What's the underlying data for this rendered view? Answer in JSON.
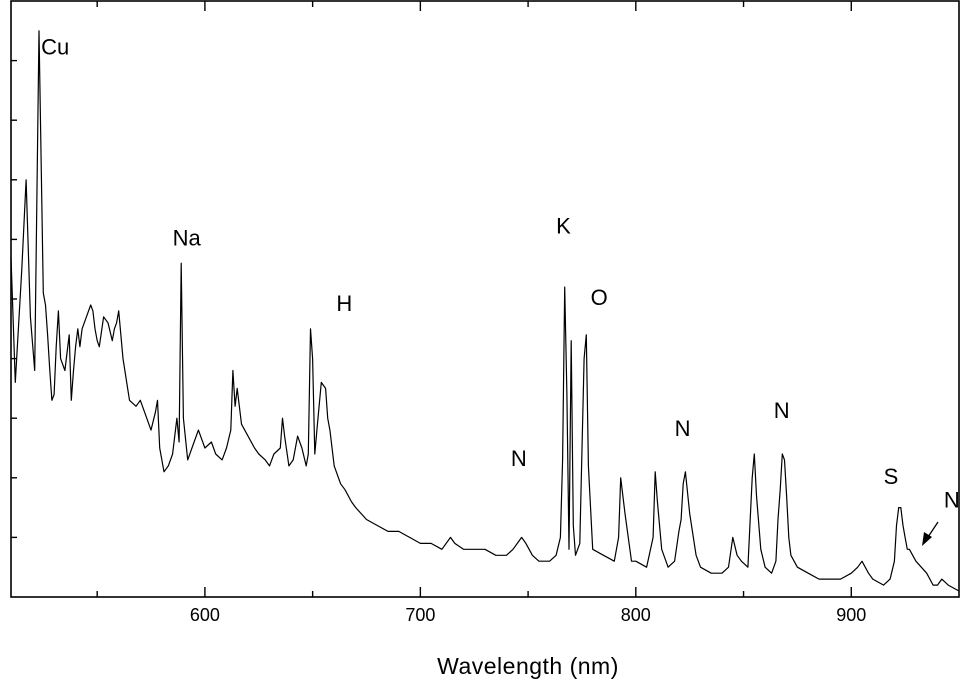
{
  "chart_data": {
    "type": "line",
    "title": "",
    "xlabel": "Wavelength (nm)",
    "ylabel": "",
    "xlim": [
      510,
      950
    ],
    "ylim": [
      0,
      100
    ],
    "x_ticks": [
      600,
      700,
      800,
      900
    ],
    "x_tick_labels": [
      "600",
      "700",
      "800",
      "900"
    ],
    "grid": false,
    "legend": "none",
    "line_color": "#000000",
    "series": [
      {
        "x": [
          510,
          512,
          515,
          517,
          519,
          521,
          523,
          525,
          526,
          527,
          528,
          529,
          530,
          531,
          532,
          533,
          535,
          537,
          538,
          539,
          540,
          541,
          542,
          543,
          545,
          547,
          548,
          549,
          550,
          551,
          553,
          555,
          557,
          558,
          559,
          560,
          562,
          565,
          568,
          570,
          572,
          575,
          577,
          578,
          579,
          581,
          583,
          585,
          587,
          588,
          589,
          590,
          592,
          595,
          597,
          600,
          603,
          605,
          608,
          610,
          612,
          613,
          614,
          615,
          617,
          620,
          623,
          625,
          628,
          630,
          632,
          635,
          636,
          637,
          639,
          641,
          643,
          645,
          647,
          648,
          649,
          650,
          651,
          652,
          654,
          656,
          657,
          658,
          660,
          663,
          665,
          668,
          670,
          675,
          680,
          685,
          690,
          695,
          700,
          705,
          710,
          714,
          716,
          720,
          725,
          730,
          735,
          740,
          743,
          745,
          747,
          749,
          752,
          755,
          760,
          763,
          765,
          766,
          767,
          768,
          769,
          770,
          771,
          772,
          774,
          776,
          777,
          778,
          780,
          785,
          790,
          792,
          793,
          795,
          798,
          800,
          805,
          808,
          809,
          810,
          812,
          815,
          818,
          820,
          821,
          822,
          823,
          825,
          828,
          830,
          835,
          840,
          843,
          845,
          847,
          849,
          852,
          854,
          855,
          856,
          858,
          860,
          863,
          865,
          866,
          867,
          868,
          869,
          870,
          871,
          872,
          875,
          880,
          885,
          890,
          895,
          900,
          903,
          905,
          908,
          910,
          915,
          918,
          920,
          921,
          922,
          923,
          924,
          925,
          926,
          927,
          930,
          935,
          938,
          940,
          942,
          945,
          950
        ],
        "y": [
          57,
          36,
          55,
          70,
          47,
          38,
          95,
          51,
          49,
          44,
          38,
          33,
          34,
          42,
          48,
          40,
          38,
          44,
          33,
          38,
          42,
          45,
          42,
          45,
          47,
          49,
          48,
          45,
          43,
          42,
          47,
          46,
          43,
          45,
          46,
          48,
          40,
          33,
          32,
          33,
          31,
          28,
          31,
          33,
          25,
          21,
          22,
          24,
          30,
          26,
          56,
          30,
          23,
          26,
          28,
          25,
          26,
          24,
          23,
          25,
          28,
          38,
          32,
          35,
          29,
          27,
          25,
          24,
          23,
          22,
          24,
          25,
          30,
          27,
          22,
          23,
          27,
          25,
          22,
          24,
          45,
          40,
          24,
          28,
          36,
          35,
          30,
          28,
          22,
          19,
          18,
          16,
          15,
          13,
          12,
          11,
          11,
          10,
          9,
          9,
          8,
          10,
          9,
          8,
          8,
          8,
          7,
          7,
          8,
          9,
          10,
          9,
          7,
          6,
          6,
          7,
          10,
          23,
          52,
          34,
          8,
          43,
          12,
          7,
          9,
          40,
          44,
          22,
          8,
          7,
          6,
          10,
          20,
          14,
          6,
          6,
          5,
          10,
          21,
          16,
          8,
          5,
          6,
          11,
          13,
          19,
          21,
          14,
          7,
          5,
          4,
          4,
          5,
          10,
          7,
          6,
          5,
          20,
          24,
          17,
          8,
          5,
          4,
          6,
          13,
          18,
          24,
          23,
          17,
          10,
          7,
          5,
          4,
          3,
          3,
          3,
          4,
          5,
          6,
          4,
          3,
          2,
          3,
          6,
          12,
          15,
          15,
          12,
          10,
          8,
          8,
          6,
          4,
          2,
          2,
          3,
          2,
          1
        ]
      }
    ],
    "annotations": [
      {
        "text": "Cu",
        "x": 524,
        "y": 91
      },
      {
        "text": "Na",
        "x": 585,
        "y": 59
      },
      {
        "text": "H",
        "x": 661,
        "y": 48
      },
      {
        "text": "K",
        "x": 763,
        "y": 61
      },
      {
        "text": "O",
        "x": 779,
        "y": 49
      },
      {
        "text": "N",
        "x": 742,
        "y": 22
      },
      {
        "text": "N",
        "x": 818,
        "y": 27
      },
      {
        "text": "N",
        "x": 864,
        "y": 30
      },
      {
        "text": "S",
        "x": 915,
        "y": 19
      },
      {
        "text": "N",
        "x": 943,
        "y": 15
      }
    ]
  }
}
